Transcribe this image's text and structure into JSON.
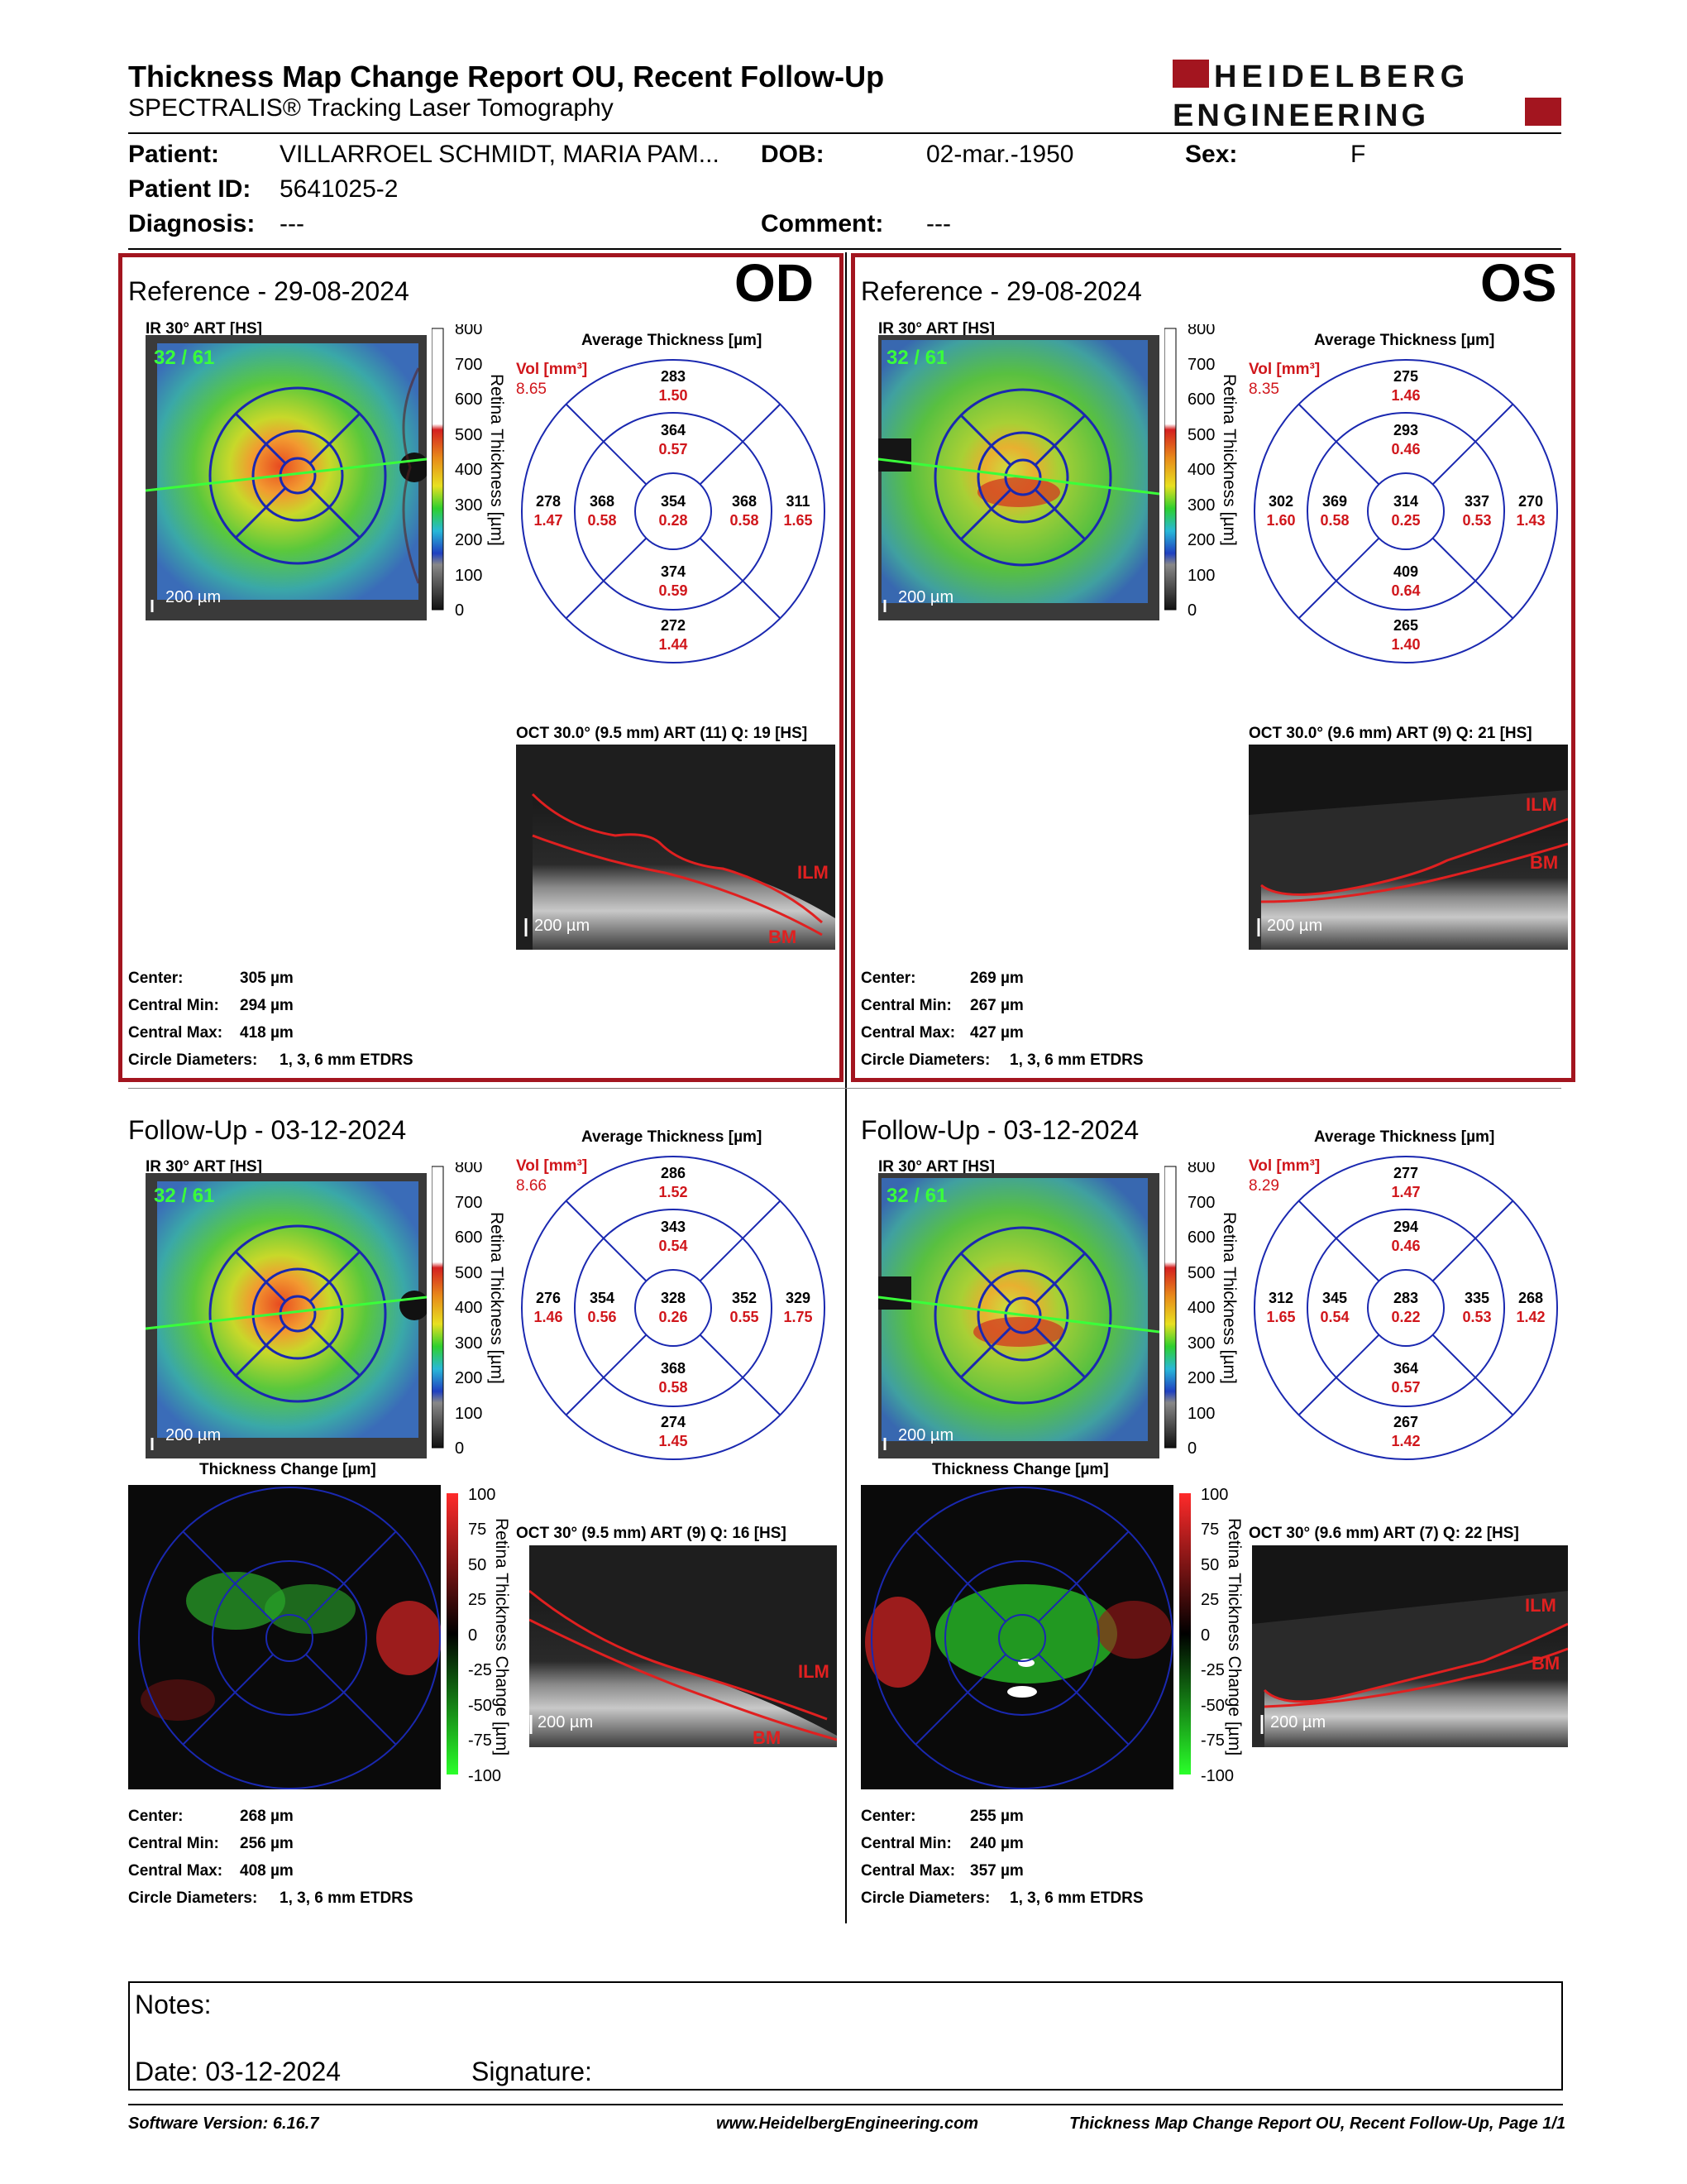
{
  "header": {
    "title": "Thickness Map Change Report OU, Recent Follow-Up",
    "subtitle": "SPECTRALIS® Tracking Laser Tomography",
    "logo_line1": "HEIDELBERG",
    "logo_line2": "ENGINEERING"
  },
  "patient": {
    "patient_label": "Patient:",
    "patient_value": "VILLARROEL SCHMIDT, MARIA PAM...",
    "dob_label": "DOB:",
    "dob_value": "02-mar.-1950",
    "sex_label": "Sex:",
    "sex_value": "F",
    "id_label": "Patient ID:",
    "id_value": "5641025-2",
    "diagnosis_label": "Diagnosis:",
    "diagnosis_value": "---",
    "comment_label": "Comment:",
    "comment_value": "---"
  },
  "common": {
    "ir_label": "IR 30° ART [HS]",
    "frames": "32 / 61",
    "scale_bar": "200 µm",
    "colorbar_title": "Retina Thickness [µm]",
    "colorbar_ticks": [
      "800",
      "700",
      "600",
      "500",
      "400",
      "300",
      "200",
      "100",
      "0"
    ],
    "avg_title": "Average Thickness [µm]",
    "vol_label": "Vol [mm³]",
    "change_title": "Thickness Change [µm]",
    "change_bar_title": "Retina Thickness Change [µm]",
    "change_ticks": [
      "100",
      "75",
      "50",
      "25",
      "0",
      "-25",
      "-50",
      "-75",
      "-100"
    ],
    "center_label": "Center:",
    "min_label": "Central Min:",
    "max_label": "Central Max:",
    "diam_label": "Circle Diameters:",
    "diam_value": "1, 3, 6 mm ETDRS",
    "ilm": "ILM",
    "bm": "BM"
  },
  "od_ref": {
    "section_title": "Reference - 29-08-2024",
    "eye": "OD",
    "vol": "8.65",
    "grid": {
      "center": [
        "354",
        "0.28"
      ],
      "inner_sup": [
        "364",
        "0.57"
      ],
      "inner_inf": [
        "374",
        "0.59"
      ],
      "inner_temp": [
        "368",
        "0.58"
      ],
      "inner_nas": [
        "368",
        "0.58"
      ],
      "outer_sup": [
        "283",
        "1.50"
      ],
      "outer_inf": [
        "272",
        "1.44"
      ],
      "outer_temp": [
        "278",
        "1.47"
      ],
      "outer_nas": [
        "311",
        "1.65"
      ]
    },
    "oct_label": "OCT 30.0° (9.5 mm) ART (11) Q: 19 [HS]",
    "center": "305 µm",
    "min": "294 µm",
    "max": "418 µm"
  },
  "os_ref": {
    "section_title": "Reference - 29-08-2024",
    "eye": "OS",
    "vol": "8.35",
    "grid": {
      "center": [
        "314",
        "0.25"
      ],
      "inner_sup": [
        "293",
        "0.46"
      ],
      "inner_inf": [
        "409",
        "0.64"
      ],
      "inner_temp": [
        "369",
        "0.58"
      ],
      "inner_nas": [
        "337",
        "0.53"
      ],
      "outer_sup": [
        "275",
        "1.46"
      ],
      "outer_inf": [
        "265",
        "1.40"
      ],
      "outer_temp": [
        "302",
        "1.60"
      ],
      "outer_nas": [
        "270",
        "1.43"
      ]
    },
    "oct_label": "OCT 30.0° (9.6 mm) ART (9) Q: 21 [HS]",
    "center": "269 µm",
    "min": "267 µm",
    "max": "427 µm"
  },
  "od_fu": {
    "section_title": "Follow-Up - 03-12-2024",
    "vol": "8.66",
    "grid": {
      "center": [
        "328",
        "0.26"
      ],
      "inner_sup": [
        "343",
        "0.54"
      ],
      "inner_inf": [
        "368",
        "0.58"
      ],
      "inner_temp": [
        "354",
        "0.56"
      ],
      "inner_nas": [
        "352",
        "0.55"
      ],
      "outer_sup": [
        "286",
        "1.52"
      ],
      "outer_inf": [
        "274",
        "1.45"
      ],
      "outer_temp": [
        "276",
        "1.46"
      ],
      "outer_nas": [
        "329",
        "1.75"
      ]
    },
    "oct_label": "OCT 30° (9.5 mm) ART (9) Q: 16 [HS]",
    "center": "268 µm",
    "min": "256 µm",
    "max": "408 µm"
  },
  "os_fu": {
    "section_title": "Follow-Up - 03-12-2024",
    "vol": "8.29",
    "grid": {
      "center": [
        "283",
        "0.22"
      ],
      "inner_sup": [
        "294",
        "0.46"
      ],
      "inner_inf": [
        "364",
        "0.57"
      ],
      "inner_temp": [
        "345",
        "0.54"
      ],
      "inner_nas": [
        "335",
        "0.53"
      ],
      "outer_sup": [
        "277",
        "1.47"
      ],
      "outer_inf": [
        "267",
        "1.42"
      ],
      "outer_temp": [
        "312",
        "1.65"
      ],
      "outer_nas": [
        "268",
        "1.42"
      ]
    },
    "oct_label": "OCT 30° (9.6 mm) ART (7) Q: 22 [HS]",
    "center": "255 µm",
    "min": "240 µm",
    "max": "357 µm"
  },
  "notes": {
    "notes_label": "Notes:",
    "date_label": "Date: 03-12-2024",
    "signature_label": "Signature:"
  },
  "footer": {
    "software": "Software Version: 6.16.7",
    "website": "www.HeidelbergEngineering.com",
    "page": "Thickness Map Change Report OU, Recent Follow-Up, Page 1/1"
  }
}
